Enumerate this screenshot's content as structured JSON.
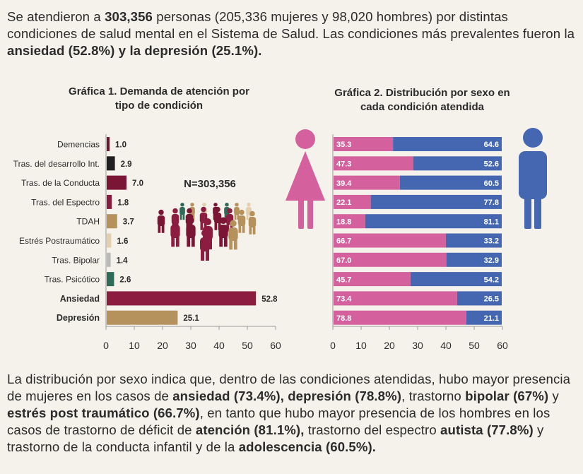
{
  "intro": {
    "p1": "Se atendieron a ",
    "total": "303,356",
    "p2": " personas (205,336 mujeres y 98,020 hombres) por distintas condiciones de salud mental en el Sistema de Salud. Las condiciones más prevalentes fueron la ",
    "highlight": "ansiedad (52.8%) y la depresión (25.1%).",
    "p3": ""
  },
  "chart1_title": "Gráfica 1. Demanda de atención por tipo de condición",
  "chart2_title": "Gráfica 2. Distribución por sexo en cada condición atendida",
  "n_label": "N=303,356",
  "colors": {
    "women": "#d4619d",
    "men": "#4567b1",
    "text": "#2b2b2b",
    "axis": "#9a9a9a"
  },
  "chart_data": [
    {
      "type": "bar",
      "orientation": "horizontal",
      "title": "Gráfica 1. Demanda de atención por tipo de condición",
      "categories": [
        "Demencias",
        "Tras. del desarrollo Int.",
        "Tras. de la Conducta",
        "Tras. del Espectro",
        "TDAH",
        "Estrés Postraumático",
        "Tras. Bipolar",
        "Tras. Psicótico",
        "Ansiedad",
        "Depresión"
      ],
      "values": [
        1.0,
        2.9,
        7.0,
        1.8,
        3.7,
        1.6,
        1.4,
        2.6,
        52.8,
        25.1
      ],
      "value_labels": [
        "1.0",
        "2.9",
        "7.0",
        "1.8",
        "3.7",
        "1.6",
        "1.4",
        "2.6",
        "52.8",
        "25.1"
      ],
      "bold_categories": [
        "Ansiedad",
        "Depresión"
      ],
      "colors": [
        "#6d1630",
        "#1f1f1f",
        "#7a1535",
        "#8b1a42",
        "#b5915c",
        "#e3cfae",
        "#b9b9b9",
        "#2f6b58",
        "#8c1c40",
        "#b5915c"
      ],
      "xlim": [
        0,
        60
      ],
      "xticks": [
        0,
        10,
        20,
        30,
        40,
        50,
        60
      ],
      "xtick_labels": [
        "0",
        "10",
        "20",
        "30",
        "40",
        "50",
        "60"
      ]
    },
    {
      "type": "bar",
      "orientation": "horizontal",
      "stacked": true,
      "title": "Gráfica 2. Distribución por sexo en cada condición atendida",
      "categories": [
        "Demencias",
        "Tras. del desarrollo Int.",
        "Tras. de la Conducta",
        "Tras. del Espectro",
        "TDAH",
        "Estrés Postraumático",
        "Tras. Bipolar",
        "Tras. Psicótico",
        "Ansiedad",
        "Depresión"
      ],
      "series": [
        {
          "name": "Mujeres",
          "color": "#d4619d",
          "values": [
            35.3,
            47.3,
            39.4,
            22.1,
            18.8,
            66.7,
            67.0,
            45.7,
            73.4,
            78.8
          ],
          "labels": [
            "35.3",
            "47.3",
            "39.4",
            "22.1",
            "18.8",
            "66.7",
            "67.0",
            "45.7",
            "73.4",
            "78.8"
          ]
        },
        {
          "name": "Hombres",
          "color": "#4567b1",
          "values": [
            64.6,
            52.6,
            60.5,
            77.8,
            81.1,
            33.2,
            32.9,
            54.2,
            26.5,
            21.1
          ],
          "labels": [
            "64.6",
            "52.6",
            "60.5",
            "77.8",
            "81.1",
            "33.2",
            "32.9",
            "54.2",
            "26.5",
            "21.1"
          ]
        }
      ],
      "xticks": [
        0,
        10,
        20,
        30,
        40,
        50,
        60
      ],
      "xtick_labels": [
        "0",
        "10",
        "20",
        "30",
        "40",
        "50",
        "60"
      ]
    }
  ],
  "outro": {
    "p1": "La distribución por sexo indica que, dentro de las condiciones atendidas, hubo mayor presencia de mujeres en los casos de ",
    "b1": "ansiedad (73.4%), depresión (78.8%)",
    "p2": ", trastorno ",
    "b2": "bipolar (67%)",
    "p3": " y ",
    "b3": "estrés post traumático (66.7%)",
    "p4": ", en tanto que hubo mayor presencia de los hombres en los casos de trastorno de déficit de ",
    "b4": "atención (81.1%),",
    "p5": " trastorno del espectro ",
    "b5": "autista (77.8%)",
    "p6": " y trastorno de la conducta infantil y de la ",
    "b6": "adolescencia (60.5%)."
  }
}
